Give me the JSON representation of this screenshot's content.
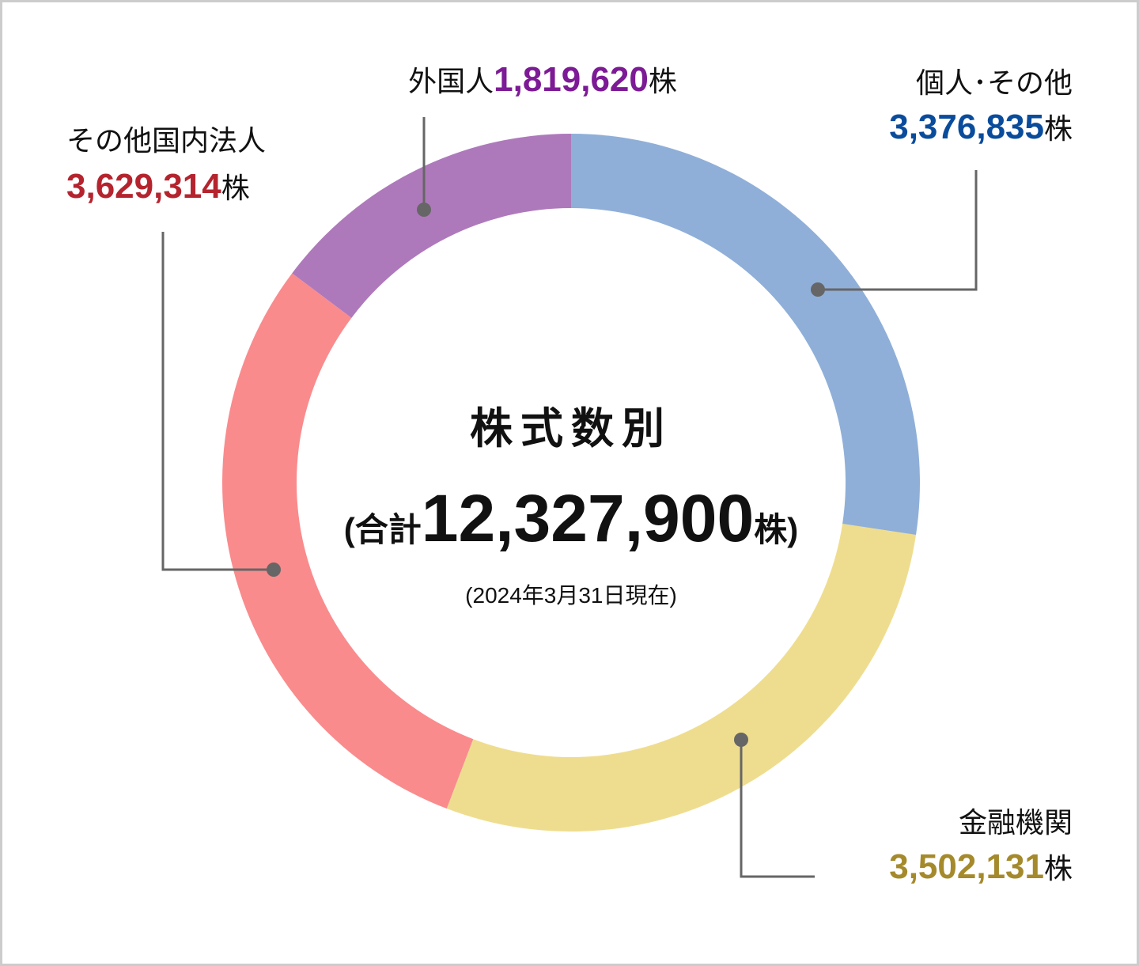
{
  "chart_data": {
    "type": "donut",
    "title": "株式数別",
    "total_prefix": "(合計",
    "total": "12,327,900",
    "total_suffix": "株)",
    "subtitle": "(2024年3月31日現在)",
    "categories": [
      "個人･その他",
      "金融機関",
      "その他国内法人",
      "外国人"
    ],
    "values": [
      3376835,
      3502131,
      3629314,
      1819620
    ],
    "value_labels": [
      "3,376,835",
      "3,502,131",
      "3,629,314",
      "1,819,620"
    ],
    "value_unit": "株",
    "colors": [
      "#8fafd8",
      "#efdd8f",
      "#f98b8d",
      "#ae79bb"
    ],
    "label_colors": [
      "#0a4c9c",
      "#a58a2c",
      "#b5242e",
      "#7d1a95"
    ]
  }
}
